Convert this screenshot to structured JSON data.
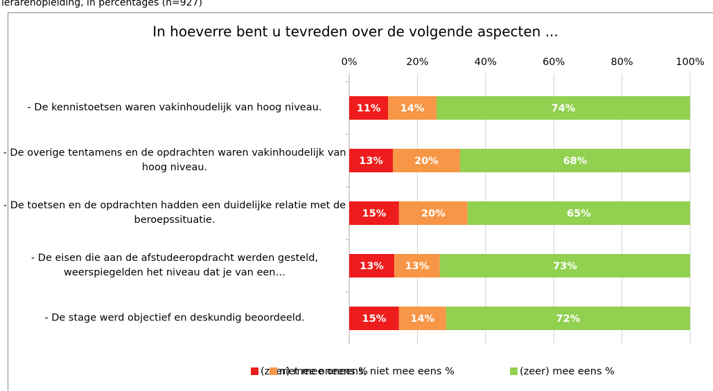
{
  "chart_data": {
    "type": "stacked_bar_horizontal",
    "caption": "lerarenopleiding, in percentages (n=927)",
    "title": "In hoeverre bent u tevreden over de volgende aspecten ...",
    "categories": [
      "- De kennistoetsen waren vakinhoudelijk van hoog niveau.",
      "- De overige tentamens en de opdrachten waren vakinhoudelijk van hoog niveau.",
      "- De toetsen en de opdrachten hadden een duidelijke relatie met de beroepssituatie.",
      "- De eisen die aan de afstudeeropdracht  werden gesteld, weerspiegelden het niveau dat je van een…",
      "- De stage werd objectief en deskundig beoordeeld."
    ],
    "series": [
      {
        "name": "(zeer) mee oneens %",
        "color": "#ee1c1c",
        "values": [
          11.4,
          12.8,
          14.6,
          13.2,
          14.6
        ],
        "value_labels": [
          "11%",
          "13%",
          "15%",
          "13%",
          "15%"
        ]
      },
      {
        "name": "niet mee oneens, niet mee eens %",
        "color": "#f79646",
        "values": [
          14.2,
          19.7,
          20.1,
          13.4,
          13.8
        ],
        "value_labels": [
          "14%",
          "20%",
          "20%",
          "13%",
          "14%"
        ]
      },
      {
        "name": "(zeer) mee eens %",
        "color": "#92d050",
        "values": [
          74.4,
          67.5,
          65.3,
          73.4,
          71.6
        ],
        "value_labels": [
          "74%",
          "68%",
          "65%",
          "73%",
          "72%"
        ]
      }
    ],
    "xlim": [
      0,
      100
    ],
    "xticks": [
      {
        "value": 0,
        "label": "0%"
      },
      {
        "value": 20,
        "label": "20%"
      },
      {
        "value": 40,
        "label": "40%"
      },
      {
        "value": 60,
        "label": "60%"
      },
      {
        "value": 80,
        "label": "80%"
      },
      {
        "value": 100,
        "label": "100%"
      }
    ],
    "grid": true,
    "legend": "bottom"
  }
}
